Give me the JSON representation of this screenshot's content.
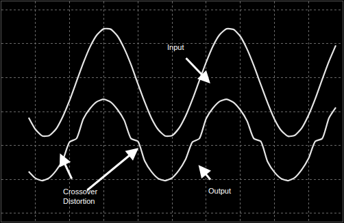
{
  "chart_data": {
    "type": "line",
    "x": [
      0.8,
      1.0,
      1.2,
      1.4,
      1.6,
      1.8,
      2.0,
      2.2,
      2.4,
      2.6,
      2.8,
      3.0,
      3.2,
      3.4,
      3.6,
      3.8,
      4.0,
      4.2,
      4.4,
      4.6,
      4.8,
      5.0,
      5.2,
      5.4,
      5.6,
      5.8,
      6.0,
      6.2,
      6.4,
      6.6,
      6.8,
      7.0,
      7.2,
      7.4,
      7.6,
      7.8,
      8.0,
      8.2,
      8.4,
      8.6,
      8.8,
      9.0,
      9.2,
      9.4,
      9.6,
      9.8
    ],
    "series": [
      {
        "name": "Input",
        "color": "#e6e6e6",
        "values": [
          -0.18,
          -0.53,
          -0.72,
          -0.71,
          -0.52,
          -0.15,
          0.33,
          0.88,
          1.43,
          1.91,
          2.26,
          2.44,
          2.43,
          2.23,
          1.86,
          1.38,
          0.82,
          0.28,
          -0.2,
          -0.54,
          -0.72,
          -0.71,
          -0.5,
          -0.13,
          0.36,
          0.91,
          1.45,
          1.93,
          2.27,
          2.44,
          2.42,
          2.22,
          1.84,
          1.35,
          0.8,
          0.26,
          -0.22,
          -0.56,
          -0.73,
          -0.7,
          -0.49,
          -0.11,
          0.38,
          0.94,
          1.48,
          1.95
        ]
      },
      {
        "name": "Output",
        "color": "#e6e6e6",
        "values": [
          -1.77,
          -1.97,
          -2.04,
          -1.96,
          -1.75,
          -1.43,
          -0.9,
          -0.8,
          -0.22,
          0.09,
          0.29,
          0.36,
          0.28,
          0.06,
          -0.26,
          -0.8,
          -0.88,
          -1.46,
          -1.78,
          -1.98,
          -2.04,
          -1.96,
          -1.74,
          -1.41,
          -0.9,
          -0.8,
          -0.21,
          0.1,
          0.3,
          0.36,
          0.27,
          0.05,
          -0.28,
          -0.8,
          -0.88,
          -1.48,
          -1.79,
          -1.98,
          -2.04,
          -1.95,
          -1.72,
          -1.39,
          -0.88,
          -0.8,
          -0.19,
          0.12
        ]
      }
    ],
    "xlim": [
      0,
      10
    ],
    "ylim": [
      -3.25,
      3.25
    ],
    "xticks": [
      0,
      1,
      2,
      3,
      4,
      5,
      6,
      7,
      8,
      9,
      10
    ],
    "yticks": [
      -3,
      -2,
      -1,
      0,
      1,
      2,
      3
    ],
    "grid": true,
    "tick_labels": false,
    "annotations": [
      {
        "text": [
          "Input"
        ],
        "x": 5.1,
        "y": 1.9,
        "arrows": [
          [
            6.15,
            0.8
          ]
        ]
      },
      {
        "text": [
          "Output"
        ],
        "x": 6.4,
        "y": -2.35,
        "arrows": [
          [
            5.75,
            -1.55
          ]
        ]
      },
      {
        "text": [
          "Crossover",
          "Distortion"
        ],
        "x": 2.3,
        "y": -2.5,
        "arrows": [
          [
            1.7,
            -1.2
          ],
          [
            4.05,
            -1.05
          ]
        ]
      }
    ]
  }
}
